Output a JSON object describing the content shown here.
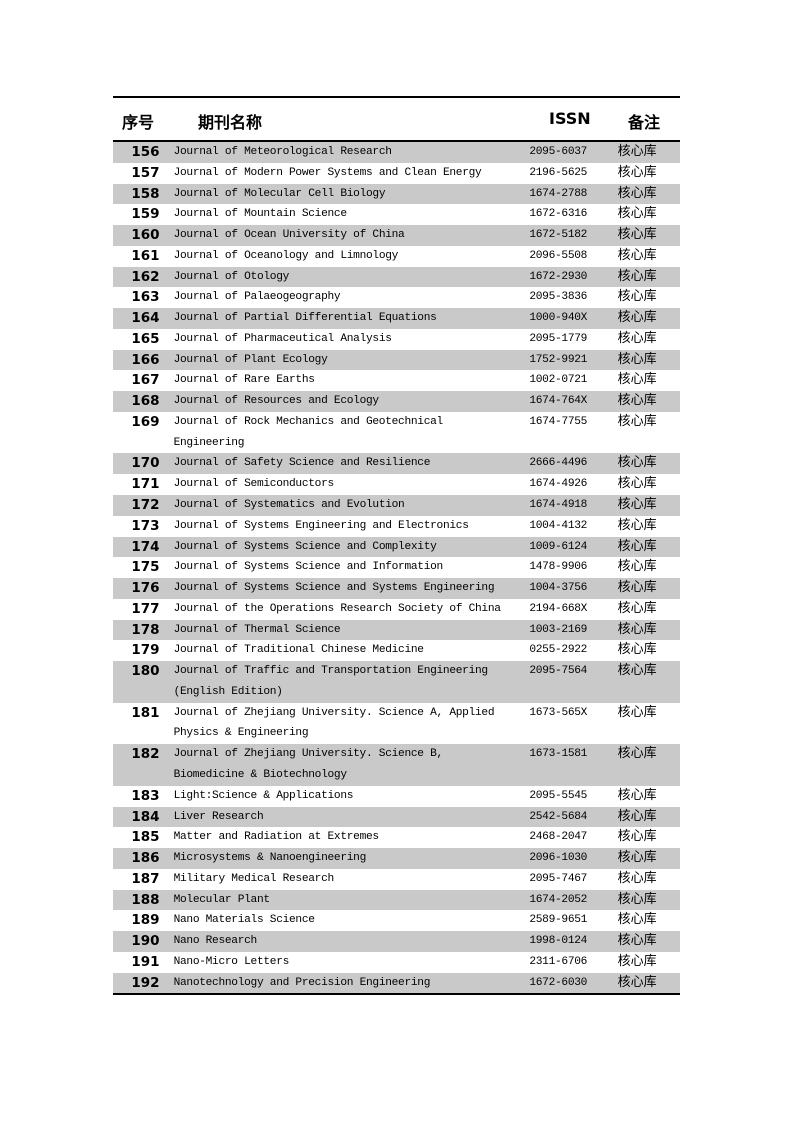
{
  "header": {
    "no": "序号",
    "name": "期刊名称",
    "issn": "ISSN",
    "note": "备注"
  },
  "shade_color": "#c9c9c9",
  "rows": [
    {
      "no": "156",
      "name": "Journal of Meteorological Research",
      "issn": "2095-6037",
      "note": "核心库"
    },
    {
      "no": "157",
      "name": "Journal of Modern Power Systems and Clean Energy",
      "issn": "2196-5625",
      "note": "核心库"
    },
    {
      "no": "158",
      "name": "Journal of Molecular Cell Biology",
      "issn": "1674-2788",
      "note": "核心库"
    },
    {
      "no": "159",
      "name": "Journal of Mountain Science",
      "issn": "1672-6316",
      "note": "核心库"
    },
    {
      "no": "160",
      "name": "Journal of Ocean University of China",
      "issn": "1672-5182",
      "note": "核心库"
    },
    {
      "no": "161",
      "name": "Journal of Oceanology and Limnology",
      "issn": "2096-5508",
      "note": "核心库"
    },
    {
      "no": "162",
      "name": "Journal of Otology",
      "issn": "1672-2930",
      "note": "核心库"
    },
    {
      "no": "163",
      "name": "Journal of Palaeogeography",
      "issn": "2095-3836",
      "note": "核心库"
    },
    {
      "no": "164",
      "name": "Journal of Partial Differential Equations",
      "issn": "1000-940X",
      "note": "核心库"
    },
    {
      "no": "165",
      "name": "Journal of Pharmaceutical Analysis",
      "issn": "2095-1779",
      "note": "核心库"
    },
    {
      "no": "166",
      "name": "Journal of Plant Ecology",
      "issn": "1752-9921",
      "note": "核心库"
    },
    {
      "no": "167",
      "name": "Journal of Rare Earths",
      "issn": "1002-0721",
      "note": "核心库"
    },
    {
      "no": "168",
      "name": "Journal of Resources and Ecology",
      "issn": "1674-764X",
      "note": "核心库"
    },
    {
      "no": "169",
      "name": "Journal of Rock Mechanics and Geotechnical Engineering",
      "issn": "1674-7755",
      "note": "核心库"
    },
    {
      "no": "170",
      "name": "Journal of Safety Science and Resilience",
      "issn": "2666-4496",
      "note": "核心库"
    },
    {
      "no": "171",
      "name": "Journal of Semiconductors",
      "issn": "1674-4926",
      "note": "核心库"
    },
    {
      "no": "172",
      "name": "Journal of Systematics and Evolution",
      "issn": "1674-4918",
      "note": "核心库"
    },
    {
      "no": "173",
      "name": "Journal of Systems Engineering and Electronics",
      "issn": "1004-4132",
      "note": "核心库"
    },
    {
      "no": "174",
      "name": "Journal of Systems Science and Complexity",
      "issn": "1009-6124",
      "note": "核心库"
    },
    {
      "no": "175",
      "name": "Journal of Systems Science and Information",
      "issn": "1478-9906",
      "note": "核心库"
    },
    {
      "no": "176",
      "name": "Journal of Systems Science and Systems Engineering",
      "issn": "1004-3756",
      "note": "核心库"
    },
    {
      "no": "177",
      "name": "Journal of the Operations Research Society of China",
      "issn": "2194-668X",
      "note": "核心库"
    },
    {
      "no": "178",
      "name": "Journal of Thermal Science",
      "issn": "1003-2169",
      "note": "核心库"
    },
    {
      "no": "179",
      "name": "Journal of Traditional Chinese Medicine",
      "issn": "0255-2922",
      "note": "核心库"
    },
    {
      "no": "180",
      "name": "Journal of Traffic and Transportation Engineering (English Edition)",
      "issn": "2095-7564",
      "note": "核心库"
    },
    {
      "no": "181",
      "name": "Journal of Zhejiang University. Science A, Applied Physics & Engineering",
      "issn": "1673-565X",
      "note": "核心库"
    },
    {
      "no": "182",
      "name": "Journal of Zhejiang University. Science B, Biomedicine & Biotechnology",
      "issn": "1673-1581",
      "note": "核心库"
    },
    {
      "no": "183",
      "name": "Light:Science & Applications",
      "issn": "2095-5545",
      "note": "核心库"
    },
    {
      "no": "184",
      "name": "Liver Research",
      "issn": "2542-5684",
      "note": "核心库"
    },
    {
      "no": "185",
      "name": "Matter and Radiation at Extremes",
      "issn": "2468-2047",
      "note": "核心库"
    },
    {
      "no": "186",
      "name": "Microsystems & Nanoengineering",
      "issn": "2096-1030",
      "note": "核心库"
    },
    {
      "no": "187",
      "name": "Military Medical Research",
      "issn": "2095-7467",
      "note": "核心库"
    },
    {
      "no": "188",
      "name": "Molecular Plant",
      "issn": "1674-2052",
      "note": "核心库"
    },
    {
      "no": "189",
      "name": "Nano Materials Science",
      "issn": "2589-9651",
      "note": "核心库"
    },
    {
      "no": "190",
      "name": "Nano Research",
      "issn": "1998-0124",
      "note": "核心库"
    },
    {
      "no": "191",
      "name": "Nano-Micro Letters",
      "issn": "2311-6706",
      "note": "核心库"
    },
    {
      "no": "192",
      "name": "Nanotechnology and Precision Engineering",
      "issn": "1672-6030",
      "note": "核心库"
    }
  ]
}
